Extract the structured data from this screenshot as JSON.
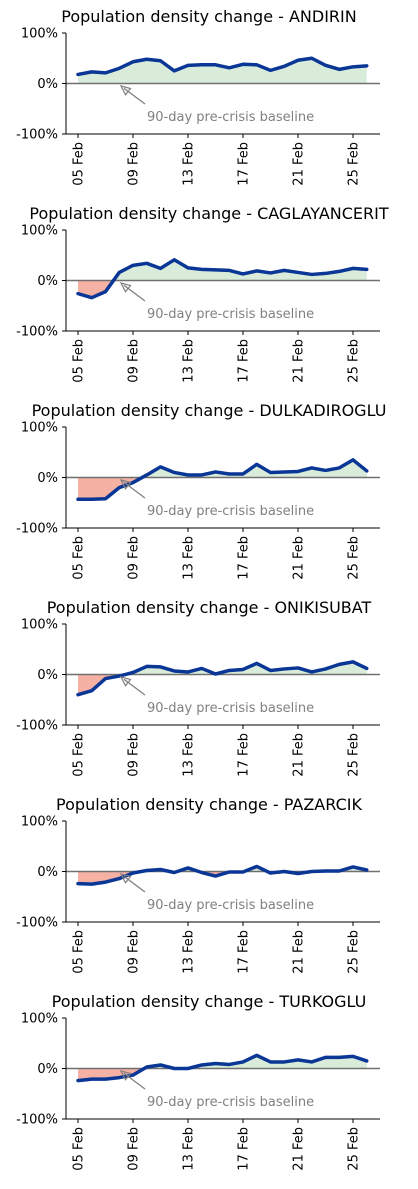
{
  "chart_data": [
    {
      "type": "line",
      "title": "Population density change - ANDIRIN",
      "x": [
        "05 Feb",
        "06 Feb",
        "07 Feb",
        "08 Feb",
        "09 Feb",
        "10 Feb",
        "11 Feb",
        "12 Feb",
        "13 Feb",
        "14 Feb",
        "15 Feb",
        "16 Feb",
        "17 Feb",
        "18 Feb",
        "19 Feb",
        "20 Feb",
        "21 Feb",
        "22 Feb",
        "23 Feb",
        "24 Feb",
        "25 Feb",
        "26 Feb"
      ],
      "series": [
        {
          "values": [
            18,
            23,
            21,
            30,
            43,
            48,
            45,
            25,
            36,
            37,
            37,
            31,
            38,
            37,
            26,
            34,
            46,
            50,
            36,
            28,
            33,
            35
          ]
        }
      ],
      "xticks": [
        "05 Feb",
        "09 Feb",
        "13 Feb",
        "17 Feb",
        "21 Feb",
        "25 Feb"
      ],
      "yticks": [
        "100%",
        "0%",
        "-100%"
      ],
      "ylim": [
        -100,
        100
      ],
      "annotation": "90-day pre-crisis baseline"
    },
    {
      "type": "line",
      "title": "Population density change - CAGLAYANCERIT",
      "x": [
        "05 Feb",
        "06 Feb",
        "07 Feb",
        "08 Feb",
        "09 Feb",
        "10 Feb",
        "11 Feb",
        "12 Feb",
        "13 Feb",
        "14 Feb",
        "15 Feb",
        "16 Feb",
        "17 Feb",
        "18 Feb",
        "19 Feb",
        "20 Feb",
        "21 Feb",
        "22 Feb",
        "23 Feb",
        "24 Feb",
        "25 Feb",
        "26 Feb"
      ],
      "series": [
        {
          "values": [
            -26,
            -34,
            -22,
            16,
            30,
            34,
            24,
            41,
            25,
            22,
            21,
            20,
            13,
            19,
            15,
            20,
            16,
            12,
            14,
            18,
            24,
            22
          ]
        }
      ],
      "xticks": [
        "05 Feb",
        "09 Feb",
        "13 Feb",
        "17 Feb",
        "21 Feb",
        "25 Feb"
      ],
      "yticks": [
        "100%",
        "0%",
        "-100%"
      ],
      "ylim": [
        -100,
        100
      ],
      "annotation": "90-day pre-crisis baseline"
    },
    {
      "type": "line",
      "title": "Population density change - DULKADIROGLU",
      "x": [
        "05 Feb",
        "06 Feb",
        "07 Feb",
        "08 Feb",
        "09 Feb",
        "10 Feb",
        "11 Feb",
        "12 Feb",
        "13 Feb",
        "14 Feb",
        "15 Feb",
        "16 Feb",
        "17 Feb",
        "18 Feb",
        "19 Feb",
        "20 Feb",
        "21 Feb",
        "22 Feb",
        "23 Feb",
        "24 Feb",
        "25 Feb",
        "26 Feb"
      ],
      "series": [
        {
          "values": [
            -43,
            -43,
            -42,
            -20,
            -10,
            5,
            21,
            10,
            5,
            5,
            11,
            7,
            7,
            26,
            10,
            11,
            12,
            19,
            14,
            19,
            35,
            13
          ]
        }
      ],
      "xticks": [
        "05 Feb",
        "09 Feb",
        "13 Feb",
        "17 Feb",
        "21 Feb",
        "25 Feb"
      ],
      "yticks": [
        "100%",
        "0%",
        "-100%"
      ],
      "ylim": [
        -100,
        100
      ],
      "annotation": "90-day pre-crisis baseline"
    },
    {
      "type": "line",
      "title": "Population density change - ONIKISUBAT",
      "x": [
        "05 Feb",
        "06 Feb",
        "07 Feb",
        "08 Feb",
        "09 Feb",
        "10 Feb",
        "11 Feb",
        "12 Feb",
        "13 Feb",
        "14 Feb",
        "15 Feb",
        "16 Feb",
        "17 Feb",
        "18 Feb",
        "19 Feb",
        "20 Feb",
        "21 Feb",
        "22 Feb",
        "23 Feb",
        "24 Feb",
        "25 Feb",
        "26 Feb"
      ],
      "series": [
        {
          "values": [
            -40,
            -32,
            -8,
            -3,
            4,
            16,
            15,
            7,
            5,
            12,
            1,
            8,
            10,
            22,
            8,
            11,
            13,
            5,
            11,
            20,
            25,
            12
          ]
        }
      ],
      "xticks": [
        "05 Feb",
        "09 Feb",
        "13 Feb",
        "17 Feb",
        "21 Feb",
        "25 Feb"
      ],
      "yticks": [
        "100%",
        "0%",
        "-100%"
      ],
      "ylim": [
        -100,
        100
      ],
      "annotation": "90-day pre-crisis baseline"
    },
    {
      "type": "line",
      "title": "Population density change - PAZARCIK",
      "x": [
        "05 Feb",
        "06 Feb",
        "07 Feb",
        "08 Feb",
        "09 Feb",
        "10 Feb",
        "11 Feb",
        "12 Feb",
        "13 Feb",
        "14 Feb",
        "15 Feb",
        "16 Feb",
        "17 Feb",
        "18 Feb",
        "19 Feb",
        "20 Feb",
        "21 Feb",
        "22 Feb",
        "23 Feb",
        "24 Feb",
        "25 Feb",
        "26 Feb"
      ],
      "series": [
        {
          "values": [
            -24,
            -25,
            -21,
            -14,
            -3,
            2,
            4,
            -2,
            7,
            -2,
            -9,
            -1,
            -1,
            10,
            -3,
            0,
            -4,
            0,
            1,
            1,
            9,
            3
          ]
        }
      ],
      "xticks": [
        "05 Feb",
        "09 Feb",
        "13 Feb",
        "17 Feb",
        "21 Feb",
        "25 Feb"
      ],
      "yticks": [
        "100%",
        "0%",
        "-100%"
      ],
      "ylim": [
        -100,
        100
      ],
      "annotation": "90-day pre-crisis baseline"
    },
    {
      "type": "line",
      "title": "Population density change - TURKOGLU",
      "x": [
        "05 Feb",
        "06 Feb",
        "07 Feb",
        "08 Feb",
        "09 Feb",
        "10 Feb",
        "11 Feb",
        "12 Feb",
        "13 Feb",
        "14 Feb",
        "15 Feb",
        "16 Feb",
        "17 Feb",
        "18 Feb",
        "19 Feb",
        "20 Feb",
        "21 Feb",
        "22 Feb",
        "23 Feb",
        "24 Feb",
        "25 Feb",
        "26 Feb"
      ],
      "series": [
        {
          "values": [
            -24,
            -21,
            -21,
            -18,
            -13,
            3,
            7,
            0,
            0,
            7,
            10,
            8,
            13,
            26,
            13,
            13,
            17,
            13,
            22,
            22,
            24,
            15
          ]
        }
      ],
      "xticks": [
        "05 Feb",
        "09 Feb",
        "13 Feb",
        "17 Feb",
        "21 Feb",
        "25 Feb"
      ],
      "yticks": [
        "100%",
        "0%",
        "-100%"
      ],
      "ylim": [
        -100,
        100
      ],
      "annotation": "90-day pre-crisis baseline"
    }
  ],
  "colors": {
    "line": "#0a3696",
    "positive_fill": "#d8ecd9",
    "negative_fill": "#f5b1a4",
    "baseline": "#707070",
    "annotation": "#808080",
    "axis": "#000000"
  }
}
